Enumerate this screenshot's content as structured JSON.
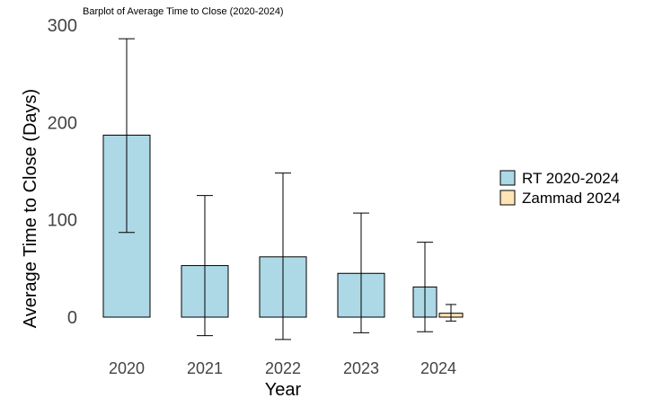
{
  "chart_data": {
    "type": "bar",
    "title": "Barplot of Average Time to Close (2020-2024)",
    "xlabel": "Year",
    "ylabel": "Average Time to Close (Days)",
    "categories": [
      "2020",
      "2021",
      "2022",
      "2023",
      "2024"
    ],
    "ylim": [
      0,
      300
    ],
    "yticks": [
      0,
      100,
      200,
      300
    ],
    "grid": false,
    "legend_position": "right",
    "series": [
      {
        "name": "RT 2020-2024",
        "color": "#add8e6",
        "values": [
          187,
          53,
          62,
          45,
          31
        ],
        "error_low": [
          87,
          -19,
          -23,
          -16,
          -15
        ],
        "error_high": [
          286,
          125,
          148,
          107,
          77
        ]
      },
      {
        "name": "Zammad 2024",
        "color": "#ffe4b5",
        "values": [
          null,
          null,
          null,
          null,
          4
        ],
        "error_low": [
          null,
          null,
          null,
          null,
          -4
        ],
        "error_high": [
          null,
          null,
          null,
          null,
          13
        ]
      }
    ]
  }
}
